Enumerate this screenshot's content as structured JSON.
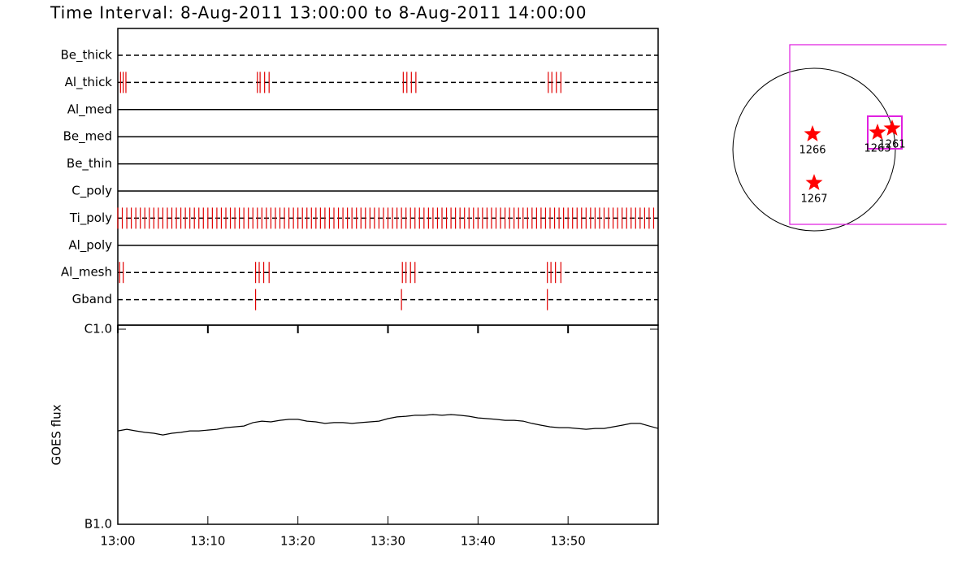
{
  "title": "Time Interval:  8-Aug-2011 13:00:00 to  8-Aug-2011 14:00:00",
  "chart_data": [
    {
      "type": "timeline",
      "xlim": [
        0,
        60
      ],
      "color": "#e00000",
      "rows": [
        {
          "name": "Be_thick",
          "line": "dashed",
          "times": []
        },
        {
          "name": "Al_thick",
          "line": "dashed",
          "times": [
            0.3,
            0.6,
            0.9,
            15.5,
            15.8,
            16.3,
            16.8,
            31.7,
            32.1,
            32.6,
            33.1,
            47.8,
            48.2,
            48.7,
            49.2
          ]
        },
        {
          "name": "Al_med",
          "line": "solid",
          "times": []
        },
        {
          "name": "Be_med",
          "line": "solid",
          "times": []
        },
        {
          "name": "Be_thin",
          "line": "solid",
          "times": []
        },
        {
          "name": "C_poly",
          "line": "solid",
          "times": []
        },
        {
          "name": "Ti_poly",
          "line": "dashed",
          "times": [
            0,
            0.5,
            1,
            1.5,
            2,
            2.5,
            3,
            3.5,
            4,
            4.5,
            5,
            5.5,
            6,
            6.5,
            7,
            7.5,
            8,
            8.5,
            9,
            9.5,
            10,
            10.5,
            11,
            11.5,
            12,
            12.5,
            13,
            13.5,
            14,
            14.5,
            15,
            15.5,
            16,
            16.5,
            17,
            17.5,
            18,
            18.5,
            19,
            19.5,
            20,
            20.5,
            21,
            21.5,
            22,
            22.5,
            23,
            23.5,
            24,
            24.5,
            25,
            25.5,
            26,
            26.5,
            27,
            27.5,
            28,
            28.5,
            29,
            29.5,
            30,
            30.5,
            31,
            31.5,
            32,
            32.5,
            33,
            33.5,
            34,
            34.5,
            35,
            35.5,
            36,
            36.5,
            37,
            37.5,
            38,
            38.5,
            39,
            39.5,
            40,
            40.5,
            41,
            41.5,
            42,
            42.5,
            43,
            43.5,
            44,
            44.5,
            45,
            45.5,
            46,
            46.5,
            47,
            47.5,
            48,
            48.5,
            49,
            49.5,
            50,
            50.5,
            51,
            51.5,
            52,
            52.5,
            53,
            53.5,
            54,
            54.5,
            55,
            55.5,
            56,
            56.5,
            57,
            57.5,
            58,
            58.5,
            59,
            59.5
          ]
        },
        {
          "name": "Al_poly",
          "line": "solid",
          "times": []
        },
        {
          "name": "Al_mesh",
          "line": "dashed",
          "times": [
            0.2,
            0.6,
            15.3,
            15.7,
            16.2,
            16.8,
            31.6,
            32.0,
            32.5,
            33.0,
            47.7,
            48.1,
            48.6,
            49.2
          ]
        },
        {
          "name": "Gband",
          "line": "dashed",
          "times": [
            15.3,
            31.5,
            47.7
          ]
        }
      ]
    },
    {
      "type": "line",
      "ylabel": "GOES flux",
      "log_scale": true,
      "color": "#000000",
      "xlim": [
        0,
        60
      ],
      "xticks": [
        {
          "value": 0,
          "label": "13:00"
        },
        {
          "value": 10,
          "label": "13:10"
        },
        {
          "value": 20,
          "label": "13:20"
        },
        {
          "value": 30,
          "label": "13:30"
        },
        {
          "value": 40,
          "label": "13:40"
        },
        {
          "value": 50,
          "label": "13:50"
        }
      ],
      "ylim": [
        1e-07,
        1e-06
      ],
      "yticks": [
        {
          "value": 1e-07,
          "label": "B1.0"
        },
        {
          "value": 1e-06,
          "label": "C1.0"
        }
      ],
      "x": [
        0,
        1,
        2,
        3,
        4,
        5,
        6,
        7,
        8,
        9,
        10,
        11,
        12,
        13,
        14,
        15,
        16,
        17,
        18,
        19,
        20,
        21,
        22,
        23,
        24,
        25,
        26,
        27,
        28,
        29,
        30,
        31,
        32,
        33,
        34,
        35,
        36,
        37,
        38,
        39,
        40,
        41,
        42,
        43,
        44,
        45,
        46,
        47,
        48,
        49,
        50,
        51,
        52,
        53,
        54,
        55,
        56,
        57,
        58,
        59,
        60
      ],
      "values": [
        3.01e-07,
        3.07e-07,
        3.01e-07,
        2.96e-07,
        2.93e-07,
        2.87e-07,
        2.93e-07,
        2.96e-07,
        3.01e-07,
        3.01e-07,
        3.04e-07,
        3.07e-07,
        3.13e-07,
        3.16e-07,
        3.19e-07,
        3.32e-07,
        3.38e-07,
        3.35e-07,
        3.41e-07,
        3.45e-07,
        3.45e-07,
        3.38e-07,
        3.35e-07,
        3.29e-07,
        3.32e-07,
        3.32e-07,
        3.29e-07,
        3.32e-07,
        3.35e-07,
        3.38e-07,
        3.48e-07,
        3.55e-07,
        3.58e-07,
        3.62e-07,
        3.62e-07,
        3.65e-07,
        3.62e-07,
        3.65e-07,
        3.62e-07,
        3.58e-07,
        3.51e-07,
        3.48e-07,
        3.45e-07,
        3.41e-07,
        3.41e-07,
        3.38e-07,
        3.29e-07,
        3.22e-07,
        3.16e-07,
        3.13e-07,
        3.13e-07,
        3.1e-07,
        3.07e-07,
        3.1e-07,
        3.1e-07,
        3.16e-07,
        3.22e-07,
        3.29e-07,
        3.29e-07,
        3.19e-07,
        3.1e-07
      ]
    }
  ],
  "map": {
    "regions": [
      "1266",
      "1267",
      "1263",
      "1261"
    ]
  }
}
